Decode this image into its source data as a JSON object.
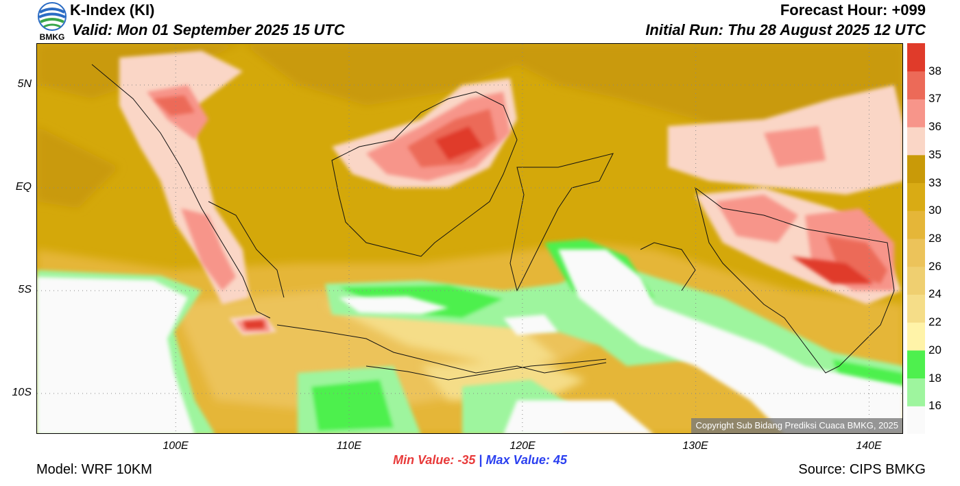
{
  "header": {
    "title": "K-Index (KI)",
    "valid": "Valid: Mon 01 September 2025 15 UTC",
    "forecast_hour": "Forecast Hour: +099",
    "initial_run": "Initial Run: Thu 28 August 2025 12 UTC",
    "logo_text": "BMKG"
  },
  "axes": {
    "y_ticks": [
      {
        "label": "5N",
        "value": 5
      },
      {
        "label": "EQ",
        "value": 0
      },
      {
        "label": "5S",
        "value": -5
      },
      {
        "label": "10S",
        "value": -10
      }
    ],
    "x_ticks": [
      {
        "label": "100E",
        "value": 100
      },
      {
        "label": "110E",
        "value": 110
      },
      {
        "label": "120E",
        "value": 120
      },
      {
        "label": "130E",
        "value": 130
      },
      {
        "label": "140E",
        "value": 140
      }
    ],
    "lon_range": [
      92,
      142
    ],
    "lat_range": [
      -12,
      7
    ]
  },
  "colorbar": {
    "levels": [
      "16",
      "18",
      "20",
      "22",
      "24",
      "26",
      "28",
      "30",
      "33",
      "35",
      "36",
      "37",
      "38"
    ],
    "colors": [
      "#fafafa",
      "#9ef59e",
      "#4ef04e",
      "#fff3a8",
      "#f5dd88",
      "#efcf70",
      "#ecc35a",
      "#e5b638",
      "#d9ab14",
      "#c99a08",
      "#fad6c6",
      "#f7958a",
      "#ec6a58",
      "#e03b2a"
    ]
  },
  "copyright": "Copyright Sub Bidang Prediksi Cuaca BMKG, 2025",
  "footer": {
    "min_value": "Min Value: -35",
    "separator": "|",
    "max_value": "Max Value:  45",
    "model": "Model: WRF 10KM",
    "source": "Source: CIPS BMKG"
  },
  "colors": {
    "background_field": "#d4a80a",
    "high_instability": "#e03b2a",
    "low_values": "#fafafa"
  }
}
